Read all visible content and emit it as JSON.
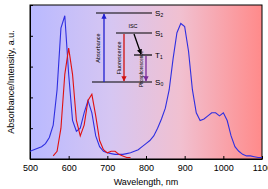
{
  "chart_data": {
    "type": "line",
    "x_label": "Wavelength, nm",
    "y_label": "Absorbance/Intensity, a.u.",
    "annotations": [
      "S₂",
      "S₁",
      "T₁",
      "S₀",
      "Absorbance",
      "Fluorescence",
      "ISC",
      "Phosphorescence"
    ],
    "x": [
      500,
      510,
      520,
      530,
      540,
      550,
      560,
      570,
      580,
      590,
      600,
      610,
      620,
      630,
      640,
      650,
      660,
      670,
      680,
      690,
      700,
      710,
      720,
      730,
      740,
      750,
      760,
      770,
      780,
      790,
      800,
      810,
      820,
      830,
      840,
      850,
      860,
      870,
      880,
      890,
      900,
      910,
      920,
      930,
      940,
      950,
      960,
      970,
      980,
      990,
      1000,
      1010,
      1020,
      1030,
      1040,
      1050,
      1060,
      1070,
      1080,
      1090,
      1100
    ],
    "series": [
      {
        "name": "Absorbance",
        "color": "#2f2fe0",
        "line_style": "solid",
        "values": [
          0.05,
          0.06,
          0.07,
          0.08,
          0.1,
          0.14,
          0.22,
          0.45,
          0.85,
          0.93,
          0.55,
          0.25,
          0.18,
          0.2,
          0.3,
          0.38,
          0.3,
          0.15,
          0.08,
          0.05,
          0.04,
          0.035,
          0.03,
          0.03,
          0.03,
          0.035,
          0.04,
          0.05,
          0.06,
          0.08,
          0.1,
          0.12,
          0.15,
          0.2,
          0.26,
          0.33,
          0.45,
          0.65,
          0.82,
          0.88,
          0.86,
          0.7,
          0.45,
          0.3,
          0.25,
          0.26,
          0.28,
          0.3,
          0.3,
          0.28,
          0.3,
          0.25,
          0.15,
          0.08,
          0.05,
          0.03,
          0.02,
          0.02,
          0.015,
          0.01,
          0.01
        ]
      },
      {
        "name": "Fluorescence",
        "color": "#e01010",
        "line_style": "solid",
        "values": [
          null,
          null,
          null,
          null,
          null,
          null,
          0.02,
          0.05,
          0.2,
          0.55,
          0.72,
          0.55,
          0.25,
          0.15,
          0.22,
          0.38,
          0.42,
          0.28,
          0.12,
          0.06,
          0.04,
          0.05,
          0.05,
          0.03,
          0.02,
          0.01,
          0.01,
          null,
          null,
          null,
          null,
          null,
          null,
          null,
          null,
          null,
          null,
          null,
          null,
          null,
          null,
          null,
          null,
          null,
          null,
          null,
          null,
          null,
          null,
          null,
          null,
          null,
          null,
          null,
          null,
          null,
          null,
          null,
          null,
          null,
          null
        ]
      }
    ],
    "xlim": [
      500,
      1100
    ],
    "xticks": [
      500,
      600,
      700,
      800,
      900,
      1000,
      1100
    ],
    "ylim": [
      0,
      1
    ],
    "yticks": [
      0,
      0.2,
      0.4,
      0.6,
      0.8,
      1
    ],
    "tick_labels": "x"
  }
}
